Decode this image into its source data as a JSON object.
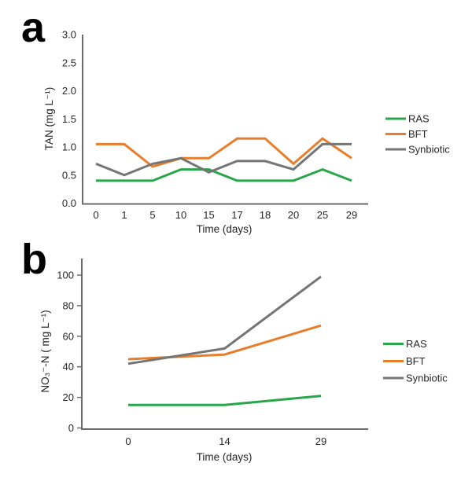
{
  "figure": {
    "background": "#ffffff",
    "panels": [
      {
        "label": "a"
      },
      {
        "label": "b"
      }
    ]
  },
  "colors": {
    "ras_green": "#27a74a",
    "bft_orange": "#e87e2b",
    "synbiotic_gray": "#757575",
    "axis": "#6b6b6b",
    "text": "#262626"
  },
  "chart_data": [
    {
      "type": "line",
      "panel": "a",
      "title": "",
      "xlabel": "Time (days)",
      "ylabel": "TAN (mg L⁻¹)",
      "categories": [
        "0",
        "1",
        "5",
        "10",
        "15",
        "17",
        "18",
        "20",
        "25",
        "29"
      ],
      "ylim": [
        0,
        3.0
      ],
      "yticks": [
        "0.0",
        "0.5",
        "1.0",
        "1.5",
        "2.0",
        "2.5",
        "3.0"
      ],
      "grid": false,
      "legend_position": "right",
      "series": [
        {
          "name": "RAS",
          "color": "#27a74a",
          "values": [
            0.4,
            0.4,
            0.4,
            0.6,
            0.6,
            0.4,
            0.4,
            0.4,
            0.6,
            0.4
          ]
        },
        {
          "name": "BFT",
          "color": "#e87e2b",
          "values": [
            1.05,
            1.05,
            0.65,
            0.8,
            0.8,
            1.15,
            1.15,
            0.7,
            1.15,
            0.8
          ]
        },
        {
          "name": "Synbiotic",
          "color": "#757575",
          "values": [
            0.7,
            0.5,
            0.7,
            0.8,
            0.55,
            0.75,
            0.75,
            0.6,
            1.05,
            1.05
          ]
        }
      ]
    },
    {
      "type": "line",
      "panel": "b",
      "title": "",
      "xlabel": "Time (days)",
      "ylabel": "NO₃⁻-N ( mg L⁻¹)",
      "categories": [
        "0",
        "14",
        "29"
      ],
      "ylim": [
        0,
        100
      ],
      "yticks": [
        "0",
        "20",
        "40",
        "60",
        "80",
        "100"
      ],
      "grid": false,
      "legend_position": "right",
      "series": [
        {
          "name": "RAS",
          "color": "#27a74a",
          "values": [
            15,
            15,
            21
          ]
        },
        {
          "name": "BFT",
          "color": "#e87e2b",
          "values": [
            45,
            48,
            67
          ]
        },
        {
          "name": "Synbiotic",
          "color": "#757575",
          "values": [
            42,
            52,
            99
          ]
        }
      ]
    }
  ]
}
